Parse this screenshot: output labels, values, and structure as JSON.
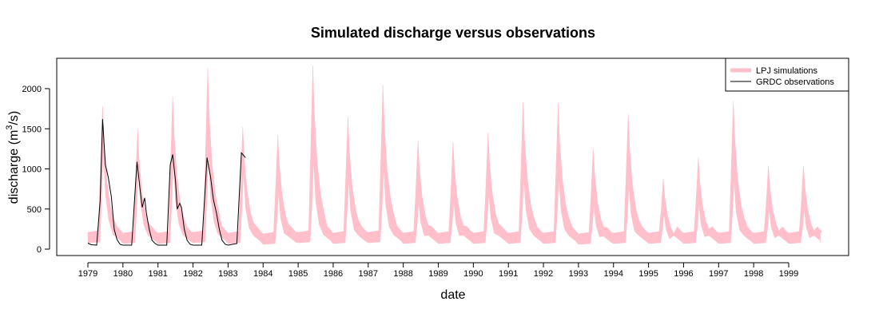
{
  "chart_data": {
    "type": "area",
    "title": "Simulated discharge versus observations",
    "xlabel": "date",
    "ylabel": "discharge (m",
    "ylabel_sup": "3",
    "ylabel_end": "/s)",
    "xlim": [
      1979.0,
      2000.0
    ],
    "ylim": [
      0,
      2300
    ],
    "yticks": [
      0,
      500,
      1000,
      1500,
      2000
    ],
    "xtick_labels": [
      "1979",
      "1980",
      "1981",
      "1982",
      "1983",
      "1984",
      "1985",
      "1986",
      "1987",
      "1988",
      "1989",
      "1990",
      "1991",
      "1992",
      "1993",
      "1994",
      "1995",
      "1996",
      "1997",
      "1998",
      "1999"
    ],
    "legend": {
      "position": "top-right",
      "entries": [
        {
          "label": "LPJ simulations",
          "color": "#ffc0cb",
          "style": "band"
        },
        {
          "label": "GRDC observations",
          "color": "#000000",
          "style": "line"
        }
      ]
    },
    "series": [
      {
        "name": "LPJ simulations",
        "kind": "band",
        "color": "#ffc0cb",
        "annual_peaks": [
          {
            "year": 1979,
            "peak": 1780,
            "low_peak": 1250,
            "base": 150
          },
          {
            "year": 1980,
            "peak": 1500,
            "low_peak": 1050,
            "base": 140
          },
          {
            "year": 1981,
            "peak": 1900,
            "low_peak": 1100,
            "base": 140
          },
          {
            "year": 1982,
            "peak": 2250,
            "low_peak": 1200,
            "base": 150
          },
          {
            "year": 1983,
            "peak": 1520,
            "low_peak": 950,
            "base": 140
          },
          {
            "year": 1984,
            "peak": 1420,
            "low_peak": 700,
            "base": 130
          },
          {
            "year": 1985,
            "peak": 2280,
            "low_peak": 1100,
            "base": 150
          },
          {
            "year": 1986,
            "peak": 1650,
            "low_peak": 850,
            "base": 140
          },
          {
            "year": 1987,
            "peak": 2050,
            "low_peak": 1000,
            "base": 150
          },
          {
            "year": 1988,
            "peak": 1350,
            "low_peak": 600,
            "base": 140
          },
          {
            "year": 1989,
            "peak": 1330,
            "low_peak": 600,
            "base": 140
          },
          {
            "year": 1990,
            "peak": 1450,
            "low_peak": 700,
            "base": 140
          },
          {
            "year": 1991,
            "peak": 1830,
            "low_peak": 900,
            "base": 140
          },
          {
            "year": 1992,
            "peak": 1820,
            "low_peak": 900,
            "base": 140
          },
          {
            "year": 1993,
            "peak": 1250,
            "low_peak": 550,
            "base": 130
          },
          {
            "year": 1994,
            "peak": 1680,
            "low_peak": 800,
            "base": 140
          },
          {
            "year": 1995,
            "peak": 880,
            "low_peak": 450,
            "base": 140
          },
          {
            "year": 1996,
            "peak": 1140,
            "low_peak": 550,
            "base": 140
          },
          {
            "year": 1997,
            "peak": 1840,
            "low_peak": 850,
            "base": 140
          },
          {
            "year": 1998,
            "peak": 1040,
            "low_peak": 500,
            "base": 140
          },
          {
            "year": 1999,
            "peak": 1040,
            "low_peak": 500,
            "base": 140
          }
        ]
      },
      {
        "name": "GRDC observations",
        "kind": "line",
        "color": "#000000",
        "points": [
          [
            1979.0,
            75
          ],
          [
            1979.1,
            55
          ],
          [
            1979.25,
            50
          ],
          [
            1979.35,
            600
          ],
          [
            1979.42,
            1620
          ],
          [
            1979.5,
            1050
          ],
          [
            1979.58,
            900
          ],
          [
            1979.67,
            650
          ],
          [
            1979.75,
            250
          ],
          [
            1979.83,
            120
          ],
          [
            1979.92,
            60
          ],
          [
            1980.0,
            50
          ],
          [
            1980.25,
            50
          ],
          [
            1980.4,
            1090
          ],
          [
            1980.5,
            700
          ],
          [
            1980.55,
            520
          ],
          [
            1980.62,
            640
          ],
          [
            1980.67,
            450
          ],
          [
            1980.75,
            250
          ],
          [
            1980.83,
            110
          ],
          [
            1980.92,
            70
          ],
          [
            1981.0,
            50
          ],
          [
            1981.25,
            50
          ],
          [
            1981.35,
            1050
          ],
          [
            1981.42,
            1180
          ],
          [
            1981.5,
            850
          ],
          [
            1981.55,
            500
          ],
          [
            1981.62,
            570
          ],
          [
            1981.67,
            520
          ],
          [
            1981.75,
            250
          ],
          [
            1981.83,
            110
          ],
          [
            1981.92,
            60
          ],
          [
            1982.0,
            50
          ],
          [
            1982.25,
            50
          ],
          [
            1982.4,
            1140
          ],
          [
            1982.5,
            900
          ],
          [
            1982.58,
            620
          ],
          [
            1982.67,
            450
          ],
          [
            1982.75,
            250
          ],
          [
            1982.83,
            110
          ],
          [
            1982.92,
            60
          ],
          [
            1983.0,
            50
          ],
          [
            1983.25,
            70
          ],
          [
            1983.38,
            1200
          ],
          [
            1983.5,
            1140
          ]
        ]
      }
    ]
  }
}
